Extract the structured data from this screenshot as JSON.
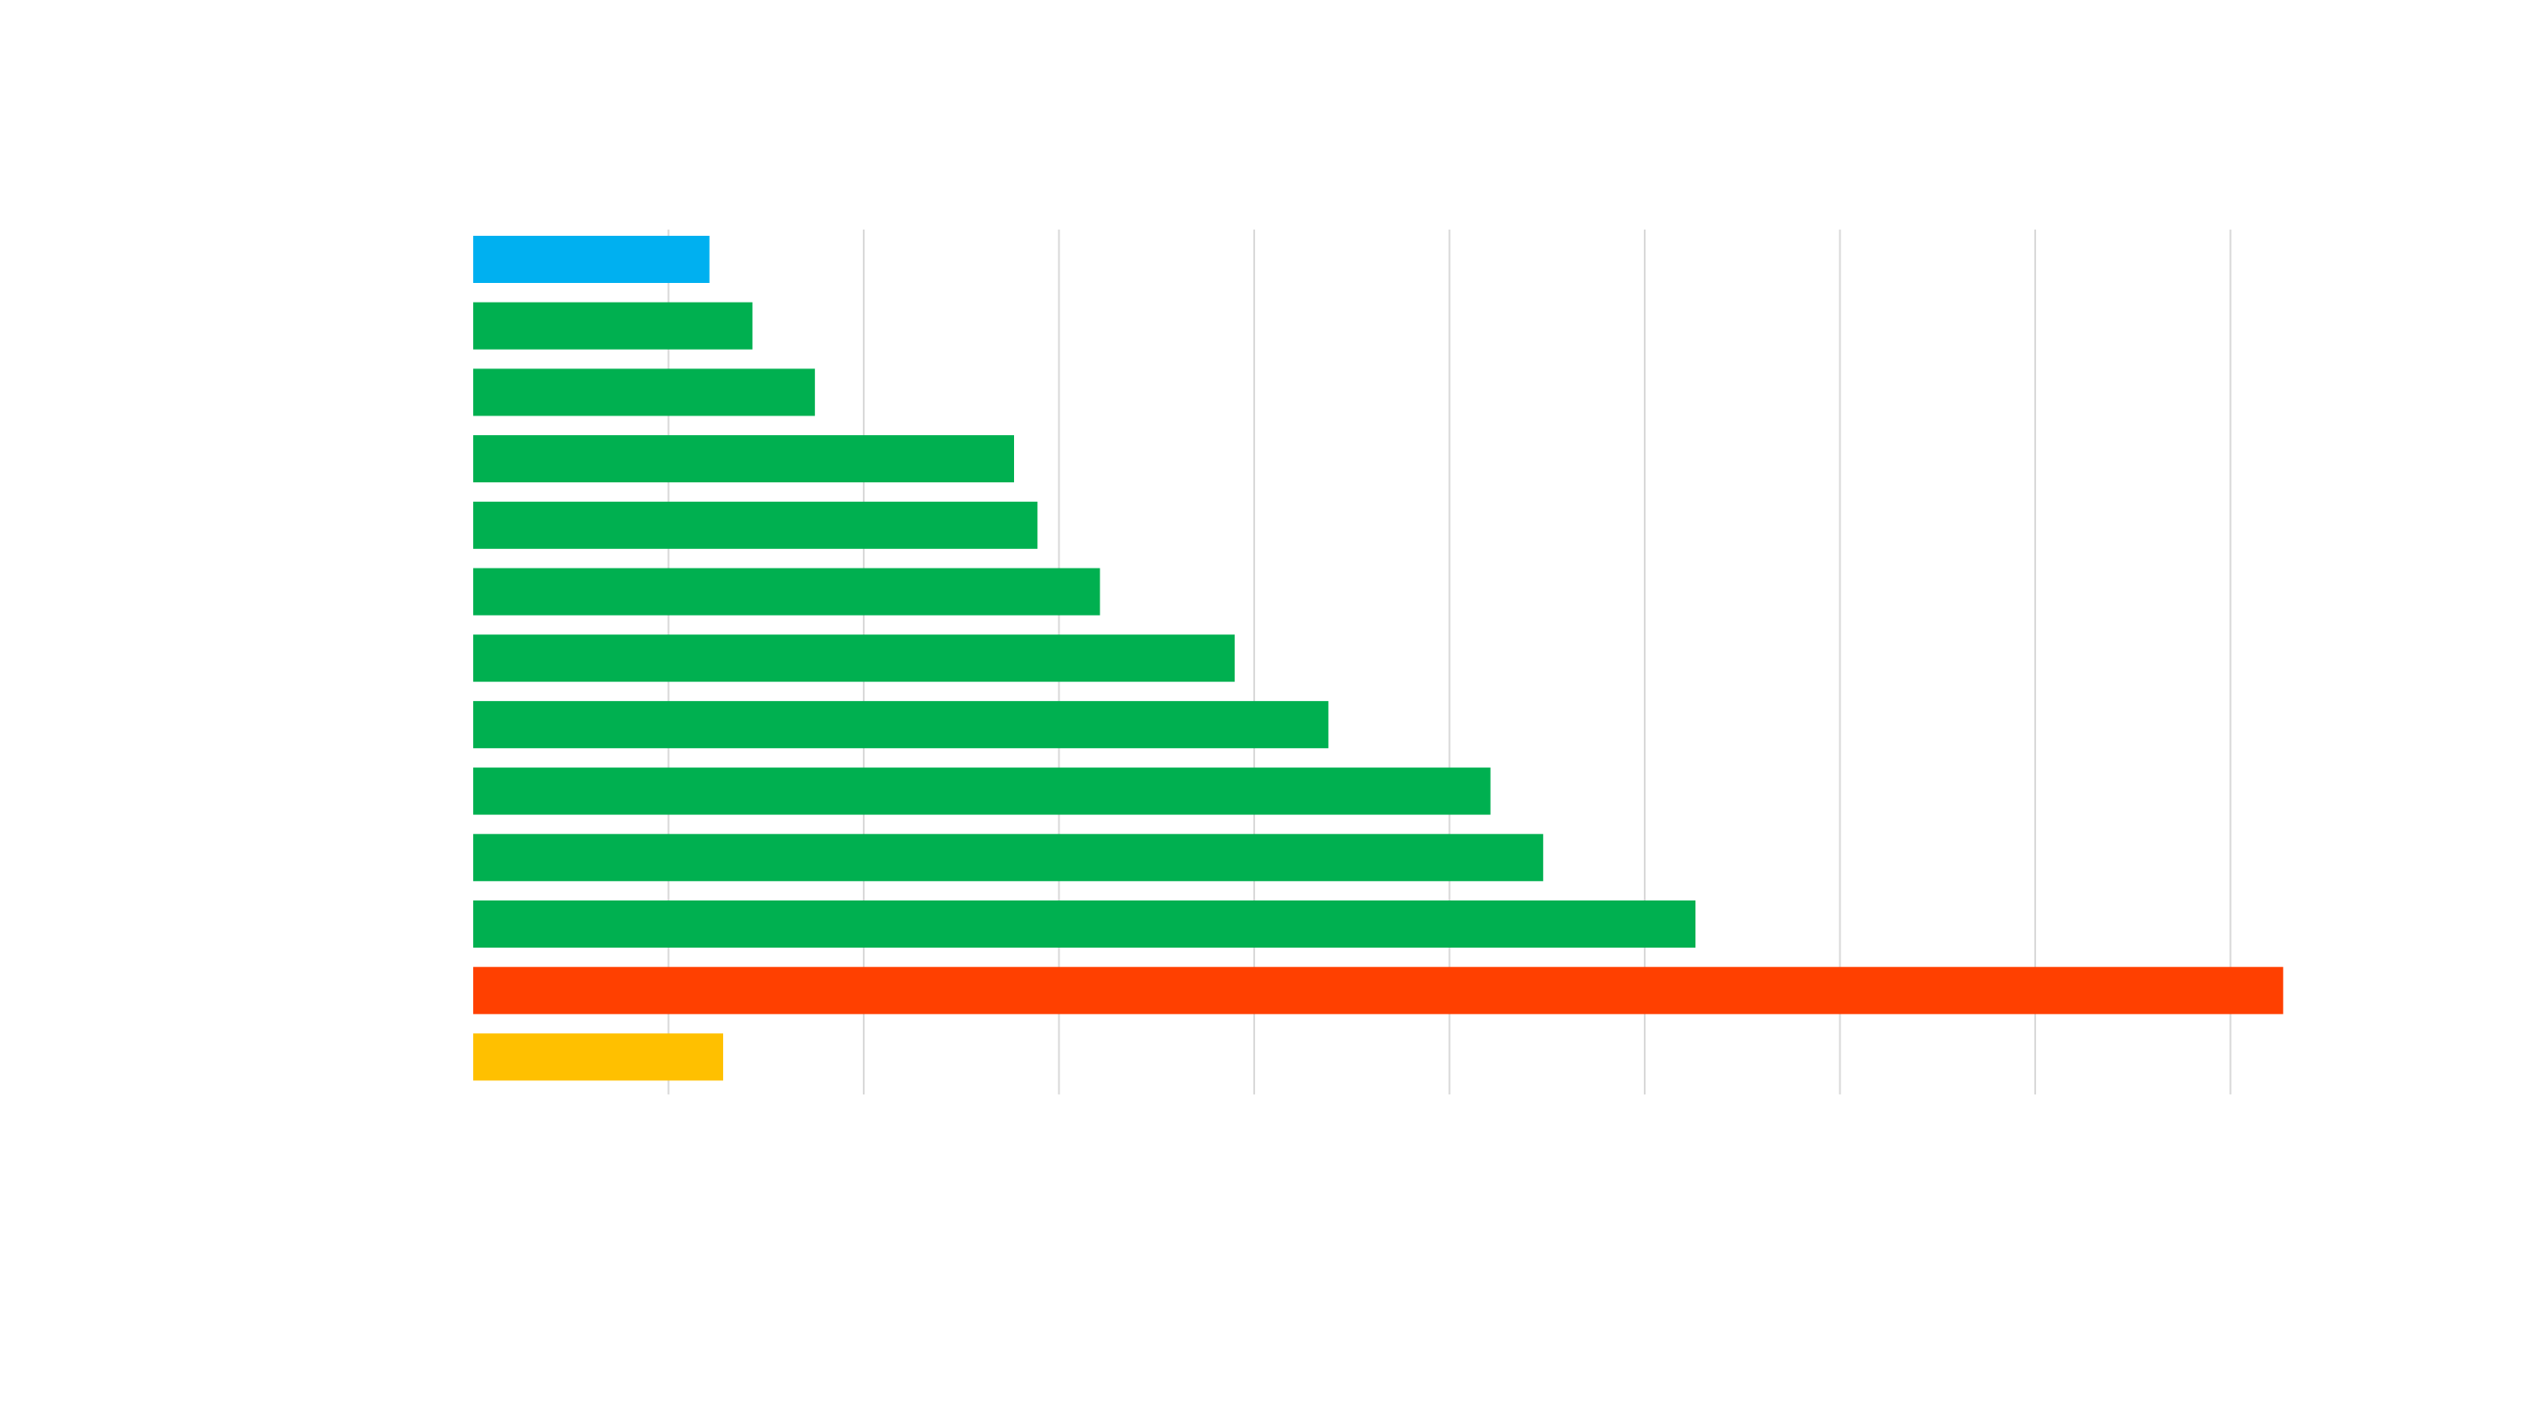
{
  "chart_data": {
    "type": "bar",
    "orientation": "horizontal",
    "title": "",
    "xlabel": "",
    "ylabel": "",
    "xlim": [
      0,
      9.3
    ],
    "grid": true,
    "legend": "none",
    "categories": [
      "",
      "",
      "",
      "",
      "",
      "",
      "",
      "",
      "",
      "",
      "",
      "",
      ""
    ],
    "values": [
      1.21,
      1.43,
      1.75,
      2.77,
      2.89,
      3.21,
      3.9,
      4.38,
      5.21,
      5.48,
      6.26,
      9.27,
      1.28
    ],
    "bar_colors": [
      "#00b0f0",
      "#00b050",
      "#00b050",
      "#00b050",
      "#00b050",
      "#00b050",
      "#00b050",
      "#00b050",
      "#00b050",
      "#00b050",
      "#00b050",
      "#ff4000",
      "#ffc000"
    ],
    "gridline_color": "#d9d9d9"
  }
}
